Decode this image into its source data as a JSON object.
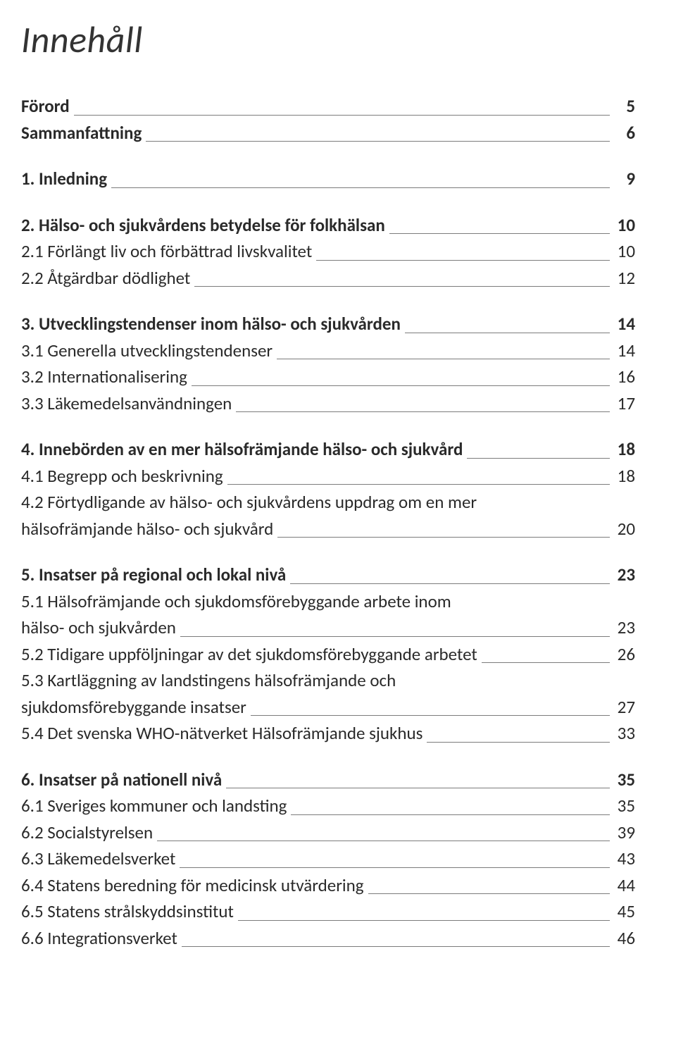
{
  "colors": {
    "text": "#2a2a2a",
    "leader": "#7c7c7c",
    "background": "#ffffff"
  },
  "typography": {
    "body_family": "Gill Sans / Calibri / sans-serif",
    "body_fontsize_pt": 19,
    "title_fontsize_pt": 39,
    "title_style": "italic",
    "title_weight": 300,
    "bold_weight": 600
  },
  "title": "Innehåll",
  "entries": [
    {
      "bold": true,
      "label": "Förord",
      "page": "5"
    },
    {
      "bold": true,
      "label": "Sammanfattning",
      "page": "6"
    },
    {
      "gap": true
    },
    {
      "bold": true,
      "label": "1. Inledning",
      "page": "9"
    },
    {
      "gap": true
    },
    {
      "bold": true,
      "label": "2. Hälso- och sjukvårdens betydelse för folkhälsan",
      "page": "10"
    },
    {
      "bold": false,
      "label": "2.1 Förlängt liv och förbättrad livskvalitet",
      "page": "10"
    },
    {
      "bold": false,
      "label": "2.2 Åtgärdbar dödlighet",
      "page": "12"
    },
    {
      "gap": true
    },
    {
      "bold": true,
      "label": "3. Utvecklingstendenser inom hälso- och sjukvården",
      "page": "14"
    },
    {
      "bold": false,
      "label": "3.1 Generella utvecklingstendenser",
      "page": "14"
    },
    {
      "bold": false,
      "label": "3.2 Internationalisering",
      "page": "16"
    },
    {
      "bold": false,
      "label": "3.3 Läkemedelsanvändningen",
      "page": "17"
    },
    {
      "gap": true
    },
    {
      "bold": true,
      "label": "4. Innebörden av en mer hälsofrämjande hälso- och sjukvård",
      "page": "18"
    },
    {
      "bold": false,
      "label": "4.1 Begrepp och beskrivning",
      "page": "18"
    },
    {
      "bold": false,
      "label_pre": "4.2 Förtydligande av hälso- och sjukvårdens uppdrag om en mer",
      "label": "hälsofrämjande hälso- och sjukvård",
      "page": "20"
    },
    {
      "gap": true
    },
    {
      "bold": true,
      "label": "5. Insatser på regional och lokal nivå",
      "page": "23"
    },
    {
      "bold": false,
      "label_pre": "5.1 Hälsofrämjande och sjukdomsförebyggande arbete inom",
      "label": "hälso- och sjukvården",
      "page": "23"
    },
    {
      "bold": false,
      "label": "5.2 Tidigare uppföljningar av det sjukdomsförebyggande arbetet",
      "page": "26"
    },
    {
      "bold": false,
      "label_pre": "5.3 Kartläggning av landstingens hälsofrämjande och",
      "label": "sjukdomsförebyggande insatser",
      "page": "27"
    },
    {
      "bold": false,
      "label": "5.4 Det svenska WHO-nätverket Hälsofrämjande sjukhus",
      "page": "33"
    },
    {
      "gap": true
    },
    {
      "bold": true,
      "label": "6. Insatser på nationell nivå",
      "page": "35"
    },
    {
      "bold": false,
      "label": "6.1 Sveriges kommuner och landsting",
      "page": "35"
    },
    {
      "bold": false,
      "label": "6.2 Socialstyrelsen",
      "page": "39"
    },
    {
      "bold": false,
      "label": "6.3 Läkemedelsverket",
      "page": "43"
    },
    {
      "bold": false,
      "label": "6.4 Statens beredning för medicinsk utvärdering",
      "page": "44"
    },
    {
      "bold": false,
      "label": "6.5 Statens strålskyddsinstitut",
      "page": "45"
    },
    {
      "bold": false,
      "label": "6.6 Integrationsverket",
      "page": "46"
    }
  ]
}
